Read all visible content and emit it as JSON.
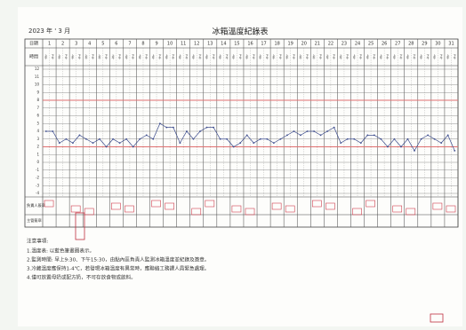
{
  "header": {
    "year_month": "2023 年 ' 3 月",
    "title": "冰箱溫度紀錄表"
  },
  "table": {
    "date_label": "日期",
    "time_label": "時間",
    "am_label": "上午",
    "pm_label": "下午",
    "days": [
      1,
      2,
      3,
      4,
      5,
      6,
      7,
      8,
      9,
      10,
      11,
      12,
      13,
      14,
      15,
      16,
      17,
      18,
      19,
      20,
      21,
      22,
      23,
      24,
      25,
      26,
      27,
      28,
      29,
      30,
      31
    ],
    "signature_label": "負責人簽章",
    "supervisor_label": "主管簽章"
  },
  "chart_data": {
    "type": "line",
    "color": "#3a4a8c",
    "ylim": [
      -4,
      12
    ],
    "yticks": [
      12,
      11,
      10,
      9,
      8,
      7,
      6,
      5,
      4,
      3,
      2,
      1,
      0,
      -1,
      -2,
      -3,
      -4
    ],
    "reference_lines": [
      8,
      2
    ],
    "reference_color": "#e07070",
    "values": [
      4,
      4,
      2.5,
      3,
      2.5,
      3.5,
      3,
      2.5,
      3,
      2,
      3,
      2.5,
      3,
      2,
      3,
      3.5,
      3,
      5,
      4.5,
      4.5,
      2.5,
      4,
      3,
      4,
      4.5,
      4.5,
      3,
      3,
      2,
      2.5,
      3.5,
      2.5,
      3,
      3,
      2.5,
      3,
      3.5,
      4,
      3.5,
      4,
      4,
      3.5,
      4,
      4.5,
      2.5,
      3,
      3,
      2.5,
      3.5,
      3.5,
      3,
      2,
      3,
      2,
      3,
      1.5,
      3,
      3.5,
      3,
      2.5,
      3.5,
      1.5
    ]
  },
  "notes": {
    "heading": "注意事項:",
    "items": [
      "1.溫度表: 以藍色筆畫圈表示。",
      "2.監測時間: 早上9:30、下午15:30，由點內區負責人監測冰箱溫度並紀錄及簽章。",
      "3.冷藏溫度應保持1-4℃，若發現冰箱溫度有異常時，應聯絡工務課人員緊急處理。",
      "4.僅可放置母奶或配方奶，不可存放食物或飲料。"
    ]
  }
}
